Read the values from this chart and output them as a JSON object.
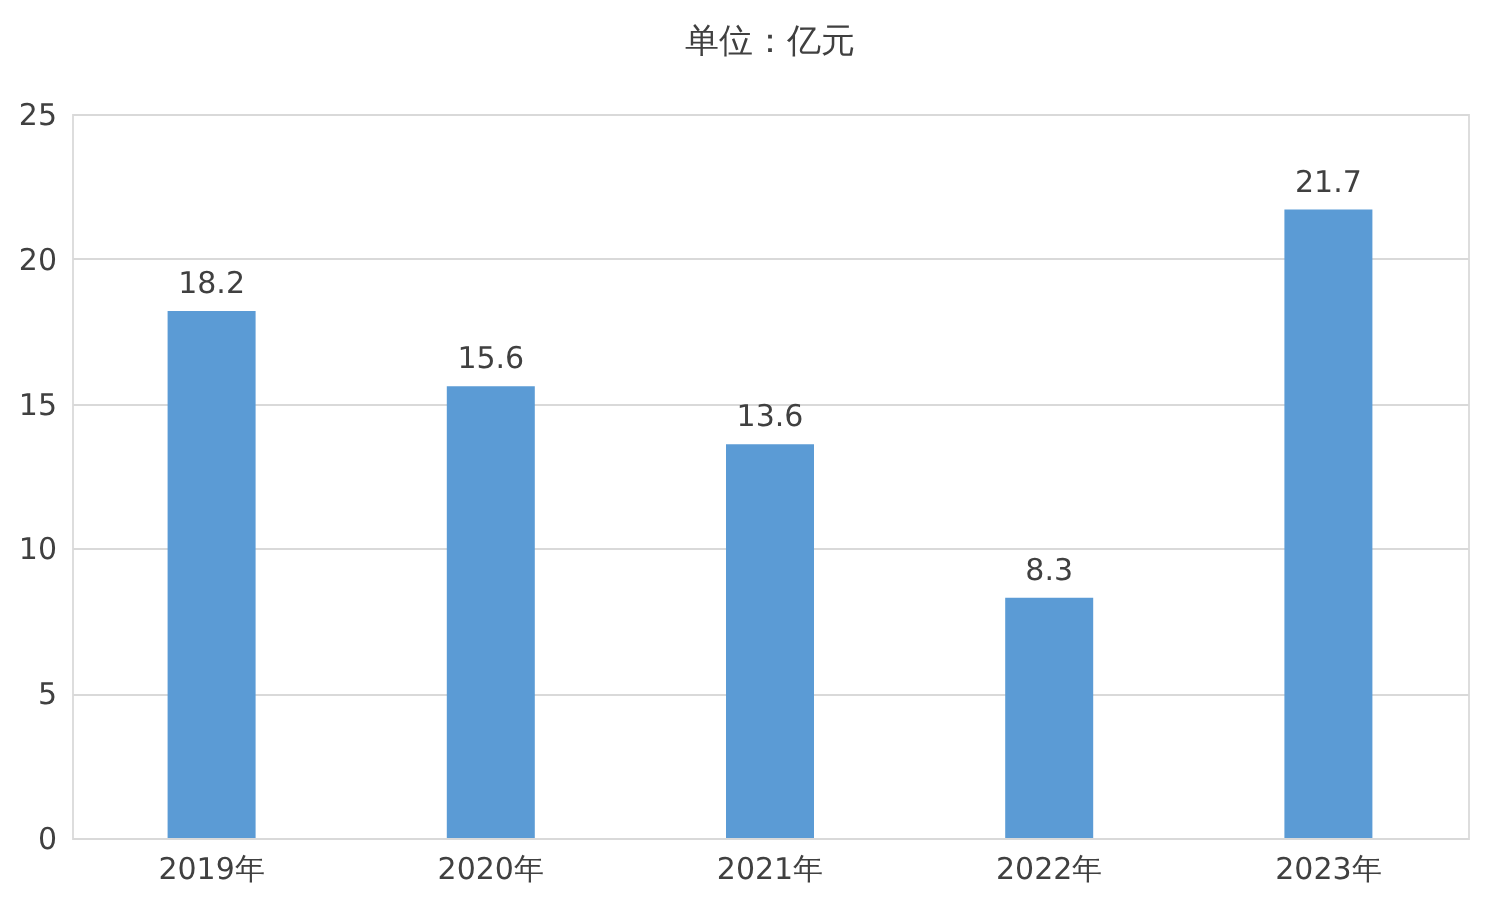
{
  "chart_data": {
    "type": "bar",
    "title": "单位：亿元",
    "categories": [
      "2019年",
      "2020年",
      "2021年",
      "2022年",
      "2023年"
    ],
    "values": [
      18.2,
      15.6,
      13.6,
      8.3,
      21.7
    ],
    "color": "#5b9bd5",
    "ylim": [
      0,
      25
    ],
    "yticks": [
      0,
      5,
      10,
      15,
      20,
      25
    ],
    "grid": "y",
    "data_labels": true
  }
}
